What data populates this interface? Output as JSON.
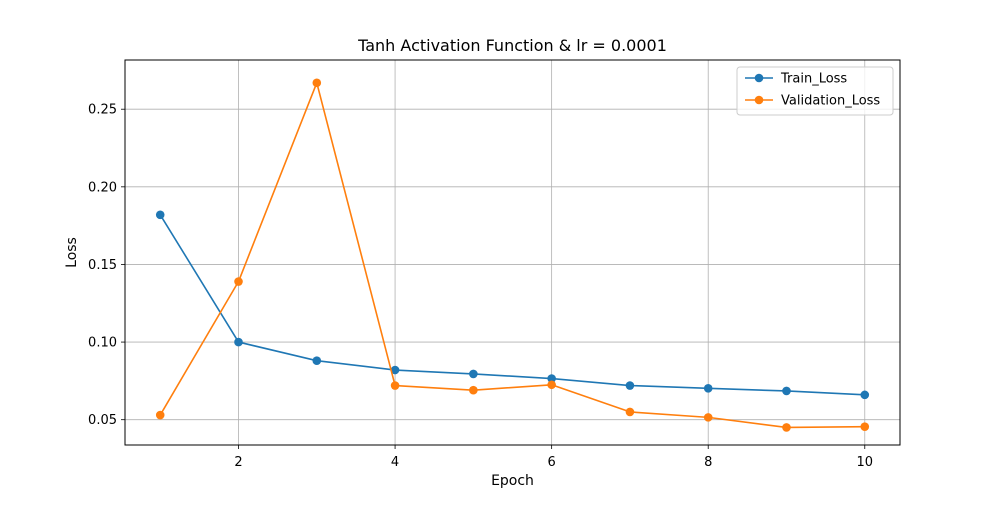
{
  "chart_data": {
    "type": "line",
    "title": "Tanh Activation Function & lr = 0.0001",
    "xlabel": "Epoch",
    "ylabel": "Loss",
    "x": [
      1,
      2,
      3,
      4,
      5,
      6,
      7,
      8,
      9,
      10
    ],
    "xlim": [
      0.55,
      10.45
    ],
    "ylim": [
      0.0337,
      0.2817
    ],
    "xticks": [
      2,
      4,
      6,
      8,
      10
    ],
    "yticks": [
      0.05,
      0.1,
      0.15,
      0.2,
      0.25
    ],
    "xtick_labels": [
      "2",
      "4",
      "6",
      "8",
      "10"
    ],
    "ytick_labels": [
      "0.05",
      "0.10",
      "0.15",
      "0.20",
      "0.25"
    ],
    "grid": true,
    "legend_position": "top-right",
    "series": [
      {
        "name": "Train_Loss",
        "color": "#1f77b4",
        "values": [
          0.182,
          0.1,
          0.088,
          0.082,
          0.0795,
          0.0765,
          0.072,
          0.0702,
          0.0685,
          0.066
        ]
      },
      {
        "name": "Validation_Loss",
        "color": "#ff7f0e",
        "values": [
          0.053,
          0.139,
          0.267,
          0.072,
          0.069,
          0.0725,
          0.055,
          0.0515,
          0.045,
          0.0455
        ]
      }
    ]
  }
}
